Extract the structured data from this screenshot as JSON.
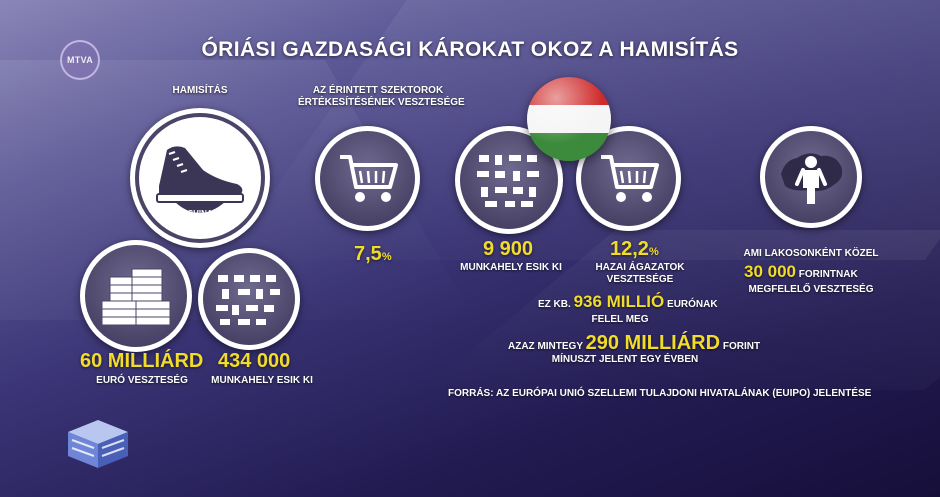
{
  "channel_logo": "MTVA",
  "title": "ÓRIÁSI GAZDASÁGI KÁROKAT OKOZ A HAMISÍTÁS",
  "left": {
    "label": "HAMISÍTÁS",
    "shoe_tag": "CHINA",
    "euro_value": "60 MILLIÁRD",
    "euro_caption": "EURÓ VESZTESÉG",
    "jobs_value": "434 000",
    "jobs_caption": "MUNKAHELY ESIK KI"
  },
  "sector": {
    "caption_line1": "AZ ÉRINTETT SZEKTOROK",
    "caption_line2": "ÉRTÉKESÍTÉSÉNEK VESZTESÉGE",
    "value": "7,5",
    "unit": "%"
  },
  "hungary": {
    "jobs_value": "9 900",
    "jobs_caption": "MUNKAHELY ESIK KI",
    "pct_value": "12,2",
    "pct_unit": "%",
    "pct_caption_line1": "HAZAI ÁGAZATOK",
    "pct_caption_line2": "VESZTESÉGE",
    "eur_pre": "EZ KB.",
    "eur_value": "936 MILLIÓ",
    "eur_post": "EURÓNAK",
    "eur_line2": "FELEL MEG",
    "huf_pre": "AZAZ MINTEGY",
    "huf_value": "290 MILLIÁRD",
    "huf_post": "FORINT",
    "huf_line2": "MÍNUSZT JELENT EGY ÉVBEN"
  },
  "per_capita": {
    "line1": "AMI LAKOSONKÉNT KÖZEL",
    "value": "30 000",
    "value_post": "FORINTNAK",
    "line3": "MEGFELELŐ VESZTESÉG"
  },
  "source": "FORRÁS: AZ EURÓPAI UNIÓ SZELLEMI TULAJDONI HIVATALÁNAK (EUIPO) JELENTÉSE",
  "colors": {
    "highlight": "#f1dc2a",
    "flag_red": "#cf2a2a",
    "flag_white": "#f5f5f5",
    "flag_green": "#3c8a3c"
  }
}
